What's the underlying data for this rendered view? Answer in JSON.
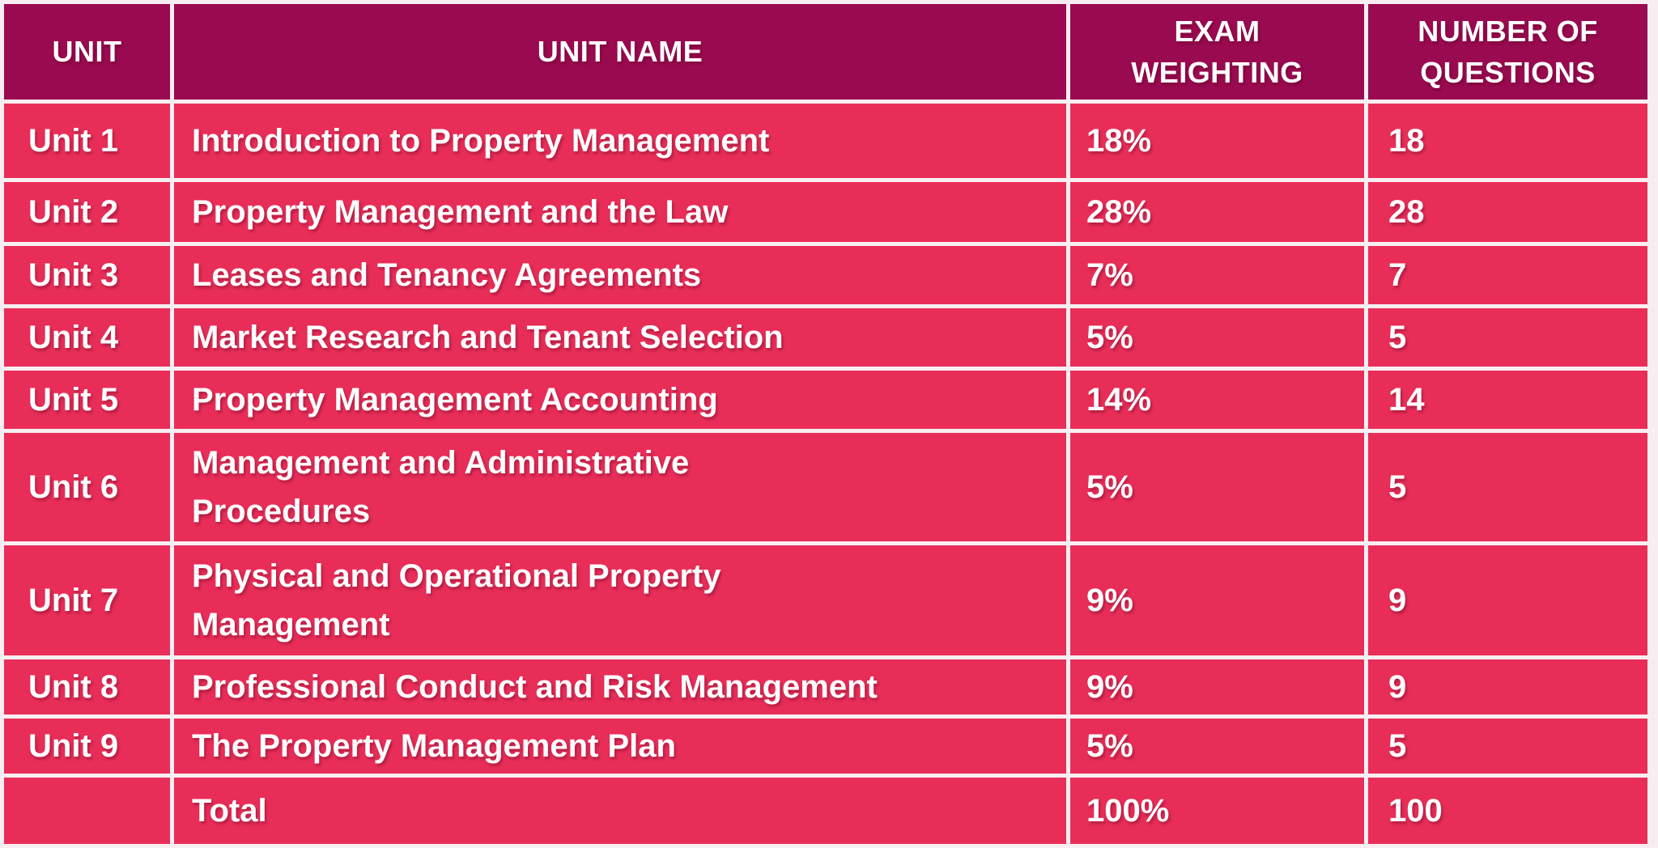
{
  "table": {
    "columns": [
      "UNIT",
      "UNIT NAME",
      "EXAM WEIGHTING",
      "NUMBER OF QUESTIONS"
    ],
    "rows": [
      {
        "unit": "Unit 1",
        "name": "Introduction to Property Management",
        "weighting": "18%",
        "questions": "18"
      },
      {
        "unit": "Unit 2",
        "name": "Property Management and the Law",
        "weighting": "28%",
        "questions": "28"
      },
      {
        "unit": "Unit 3",
        "name": "Leases and Tenancy Agreements",
        "weighting": "7%",
        "questions": "7"
      },
      {
        "unit": "Unit 4",
        "name": "Market Research and Tenant Selection",
        "weighting": "5%",
        "questions": "5"
      },
      {
        "unit": "Unit 5",
        "name": "Property Management Accounting",
        "weighting": "14%",
        "questions": "14"
      },
      {
        "unit": "Unit 6",
        "name": "Management and Administrative\nProcedures",
        "weighting": "5%",
        "questions": "5"
      },
      {
        "unit": "Unit 7",
        "name": "Physical and Operational Property\nManagement",
        "weighting": "9%",
        "questions": "9"
      },
      {
        "unit": "Unit 8",
        "name": "Professional Conduct and Risk Management",
        "weighting": "9%",
        "questions": "9"
      },
      {
        "unit": "Unit 9",
        "name": "The Property Management Plan",
        "weighting": "5%",
        "questions": "5"
      },
      {
        "unit": "",
        "name": "Total",
        "weighting": "100%",
        "questions": "100"
      }
    ]
  },
  "colors": {
    "header_bg": "#9A0A50",
    "row_bg": "#E82D58",
    "gridline": "#F7EEF1",
    "text": "#FFFFFF"
  },
  "chart_data": {
    "type": "table",
    "title": "Exam unit weighting table",
    "columns": [
      "UNIT",
      "UNIT NAME",
      "EXAM WEIGHTING",
      "NUMBER OF QUESTIONS"
    ],
    "rows": [
      [
        "Unit 1",
        "Introduction to Property Management",
        "18%",
        18
      ],
      [
        "Unit 2",
        "Property Management and the Law",
        "28%",
        28
      ],
      [
        "Unit 3",
        "Leases and Tenancy Agreements",
        "7%",
        7
      ],
      [
        "Unit 4",
        "Market Research and Tenant Selection",
        "5%",
        5
      ],
      [
        "Unit 5",
        "Property Management Accounting",
        "14%",
        14
      ],
      [
        "Unit 6",
        "Management and Administrative Procedures",
        "5%",
        5
      ],
      [
        "Unit 7",
        "Physical and Operational Property Management",
        "9%",
        9
      ],
      [
        "Unit 8",
        "Professional Conduct and Risk Management",
        "9%",
        9
      ],
      [
        "Unit 9",
        "The Property Management Plan",
        "5%",
        5
      ],
      [
        "",
        "Total",
        "100%",
        100
      ]
    ]
  }
}
